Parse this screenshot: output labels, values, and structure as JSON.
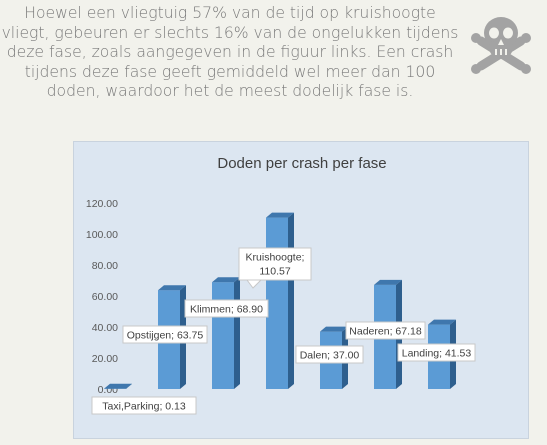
{
  "intro": {
    "text": "Hoewel een vliegtuig 57% van de tijd op kruishoogte vliegt, gebeuren er slechts 16% van de ongelukken tijdens deze fase, zoals aangegeven in de figuur links. Een crash tijdens deze fase geeft gemiddeld wel meer dan 100 doden, waardoor het de meest dodelijk fase is."
  },
  "icons": {
    "skull": "skull-crossbones-icon"
  },
  "colors": {
    "bar_front": "#5b9bd5",
    "bar_side": "#2e5f8e",
    "bar_top": "#3f77ad",
    "chart_bg": "#dce6f1",
    "text": "#7a7a7a"
  },
  "chart_data": {
    "type": "bar",
    "title": "Doden per crash per fase",
    "categories": [
      "Taxi,Parking",
      "Opstijgen",
      "Klimmen",
      "Kruishoogte",
      "Dalen",
      "Naderen",
      "Landing"
    ],
    "values": [
      0.13,
      63.75,
      68.9,
      110.57,
      37.0,
      67.18,
      41.53
    ],
    "data_labels": [
      "Taxi,Parking; 0.13",
      "Opstijgen; 63.75",
      "Klimmen; 68.90",
      "Kruishoogte; 110.57",
      "Dalen; 37.00",
      "Naderen; 67.18",
      "Landing; 41.53"
    ],
    "yticks": [
      "0.00",
      "20.00",
      "40.00",
      "60.00",
      "80.00",
      "100.00",
      "120.00"
    ],
    "ylim": [
      0,
      120
    ],
    "xlabel": "",
    "ylabel": "",
    "grid": false,
    "legend": "none",
    "style": "3d-column"
  }
}
